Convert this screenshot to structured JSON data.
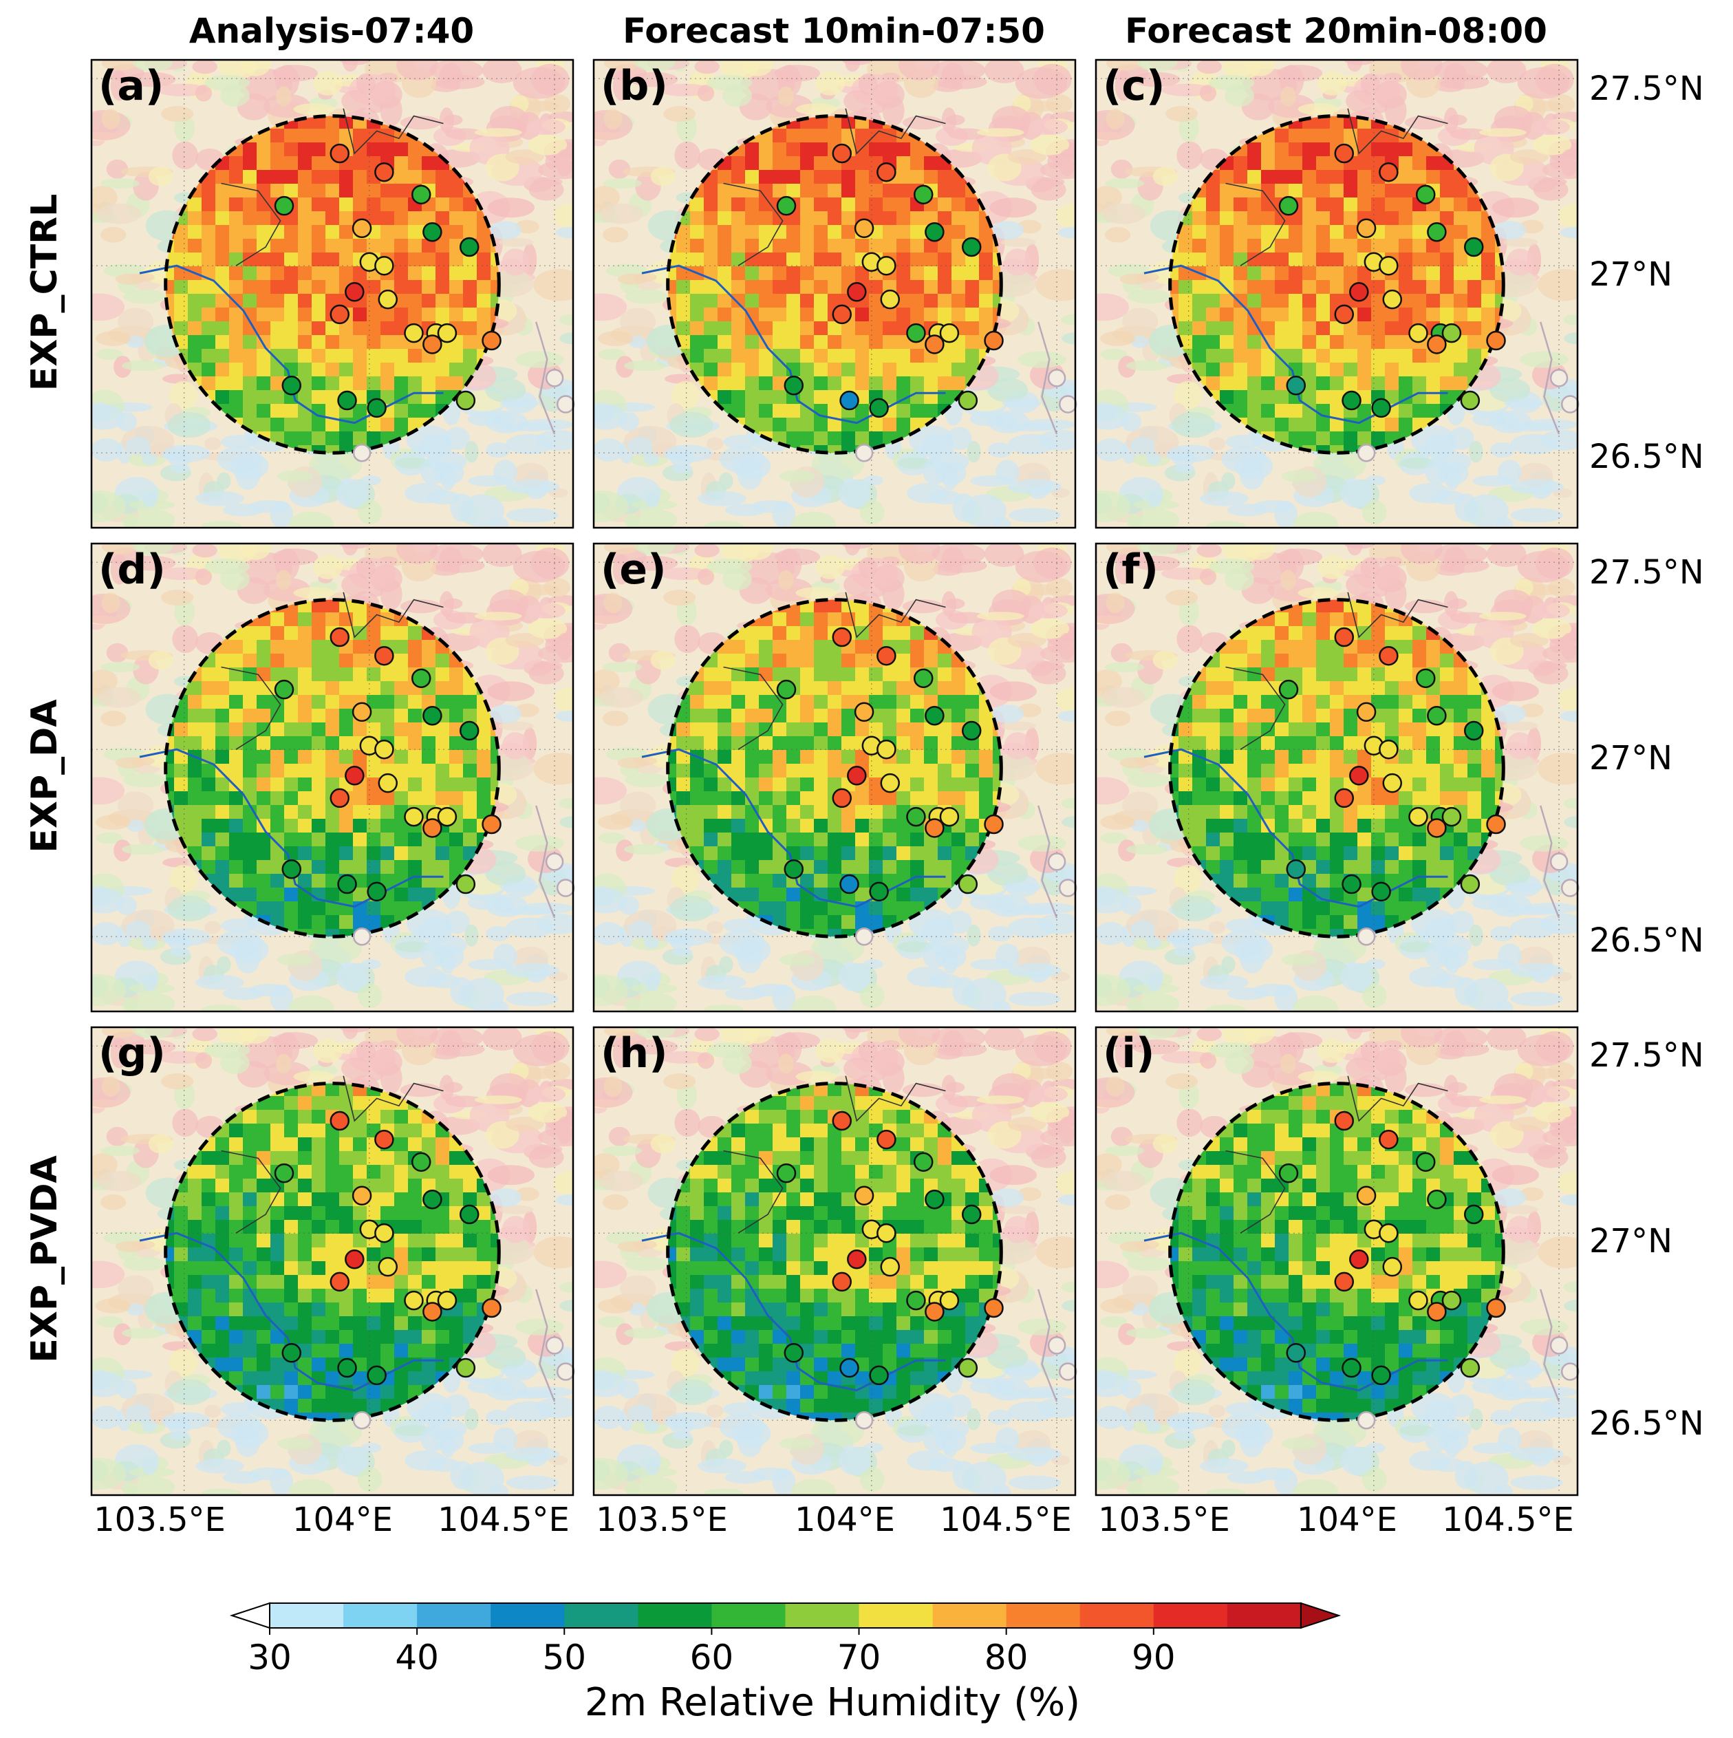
{
  "columns": [
    {
      "title": "Analysis-07:40"
    },
    {
      "title": "Forecast 10min-07:50"
    },
    {
      "title": "Forecast 20min-08:00"
    }
  ],
  "rows": [
    {
      "label": "EXP_CTRL"
    },
    {
      "label": "EXP_DA"
    },
    {
      "label": "EXP_PVDA"
    }
  ],
  "panel_labels": [
    "(a)",
    "(b)",
    "(c)",
    "(d)",
    "(e)",
    "(f)",
    "(g)",
    "(h)",
    "(i)"
  ],
  "lon_ticks": [
    "103.5°E",
    "104°E",
    "104.5°E"
  ],
  "lat_ticks": [
    "27.5°N",
    "27°N",
    "26.5°N"
  ],
  "colorbar": {
    "title": "2m Relative Humidity (%)",
    "tick_labels": [
      "30",
      "40",
      "50",
      "60",
      "70",
      "80",
      "90"
    ],
    "colors": [
      "#ffffff",
      "#bfe8f8",
      "#7fd3f2",
      "#3fa9de",
      "#0e87c6",
      "#159a7f",
      "#0a9a3a",
      "#33b536",
      "#8fcc3c",
      "#f2e040",
      "#fbb23c",
      "#f8812e",
      "#f2562a",
      "#e52b26",
      "#c81a20",
      "#a50f15"
    ]
  },
  "chart_data": {
    "type": "heatmap",
    "variable": "2m Relative Humidity (%)",
    "value_range": [
      30,
      95
    ],
    "lon_range": [
      103.25,
      104.55
    ],
    "lat_range": [
      26.3,
      27.55
    ],
    "lon_ticks": [
      103.5,
      104.0,
      104.5
    ],
    "lat_ticks": [
      27.5,
      27.0,
      26.5
    ],
    "domain_circle": {
      "center_lon": 103.9,
      "center_lat": 26.95,
      "radius_deg": 0.45
    },
    "stations": [
      {
        "lon": 103.92,
        "lat": 27.3
      },
      {
        "lon": 104.04,
        "lat": 27.25
      },
      {
        "lon": 104.14,
        "lat": 27.19
      },
      {
        "lon": 103.77,
        "lat": 27.16
      },
      {
        "lon": 103.98,
        "lat": 27.1
      },
      {
        "lon": 104.17,
        "lat": 27.09
      },
      {
        "lon": 104.27,
        "lat": 27.05
      },
      {
        "lon": 104.0,
        "lat": 27.01
      },
      {
        "lon": 104.04,
        "lat": 27.0
      },
      {
        "lon": 103.96,
        "lat": 26.93
      },
      {
        "lon": 104.05,
        "lat": 26.91
      },
      {
        "lon": 103.92,
        "lat": 26.87
      },
      {
        "lon": 104.12,
        "lat": 26.82
      },
      {
        "lon": 104.18,
        "lat": 26.82
      },
      {
        "lon": 104.21,
        "lat": 26.82
      },
      {
        "lon": 104.17,
        "lat": 26.79
      },
      {
        "lon": 104.33,
        "lat": 26.8
      },
      {
        "lon": 103.79,
        "lat": 26.68
      },
      {
        "lon": 103.94,
        "lat": 26.64
      },
      {
        "lon": 104.02,
        "lat": 26.62
      },
      {
        "lon": 104.26,
        "lat": 26.64
      }
    ],
    "panels": [
      {
        "id": "(a)",
        "experiment": "EXP_CTRL",
        "time": "Analysis-07:40",
        "station_rh": [
          88,
          86,
          64,
          62,
          78,
          58,
          57,
          70,
          70,
          90,
          70,
          86,
          70,
          70,
          70,
          82,
          84,
          55,
          55,
          55,
          66
        ]
      },
      {
        "id": "(b)",
        "experiment": "EXP_CTRL",
        "time": "Forecast 10min-07:50",
        "station_rh": [
          88,
          86,
          64,
          62,
          78,
          58,
          57,
          70,
          70,
          90,
          70,
          86,
          64,
          70,
          70,
          82,
          84,
          55,
          46,
          55,
          66
        ]
      },
      {
        "id": "(c)",
        "experiment": "EXP_CTRL",
        "time": "Forecast 20min-08:00",
        "station_rh": [
          88,
          86,
          64,
          62,
          78,
          63,
          57,
          70,
          70,
          92,
          70,
          86,
          70,
          62,
          66,
          82,
          84,
          53,
          55,
          55,
          68
        ]
      },
      {
        "id": "(d)",
        "experiment": "EXP_DA",
        "time": "Analysis-07:40",
        "station_rh": [
          88,
          86,
          64,
          62,
          78,
          58,
          57,
          70,
          70,
          90,
          70,
          86,
          70,
          70,
          70,
          82,
          84,
          55,
          55,
          55,
          66
        ]
      },
      {
        "id": "(e)",
        "experiment": "EXP_DA",
        "time": "Forecast 10min-07:50",
        "station_rh": [
          88,
          86,
          64,
          62,
          78,
          58,
          57,
          70,
          70,
          90,
          70,
          86,
          64,
          70,
          70,
          82,
          84,
          55,
          46,
          55,
          66
        ]
      },
      {
        "id": "(f)",
        "experiment": "EXP_DA",
        "time": "Forecast 20min-08:00",
        "station_rh": [
          88,
          86,
          64,
          62,
          78,
          63,
          57,
          70,
          70,
          92,
          70,
          86,
          70,
          62,
          66,
          82,
          84,
          53,
          55,
          55,
          68
        ]
      },
      {
        "id": "(g)",
        "experiment": "EXP_PVDA",
        "time": "Analysis-07:40",
        "station_rh": [
          88,
          86,
          64,
          62,
          78,
          58,
          57,
          70,
          70,
          90,
          70,
          86,
          70,
          70,
          70,
          82,
          84,
          55,
          55,
          55,
          66
        ]
      },
      {
        "id": "(h)",
        "experiment": "EXP_PVDA",
        "time": "Forecast 10min-07:50",
        "station_rh": [
          88,
          86,
          64,
          62,
          78,
          58,
          57,
          70,
          70,
          90,
          70,
          86,
          64,
          70,
          70,
          82,
          84,
          55,
          46,
          55,
          66
        ]
      },
      {
        "id": "(i)",
        "experiment": "EXP_PVDA",
        "time": "Forecast 20min-08:00",
        "station_rh": [
          88,
          86,
          64,
          62,
          78,
          63,
          57,
          70,
          70,
          92,
          70,
          86,
          70,
          62,
          66,
          82,
          84,
          53,
          55,
          55,
          68
        ]
      }
    ]
  }
}
